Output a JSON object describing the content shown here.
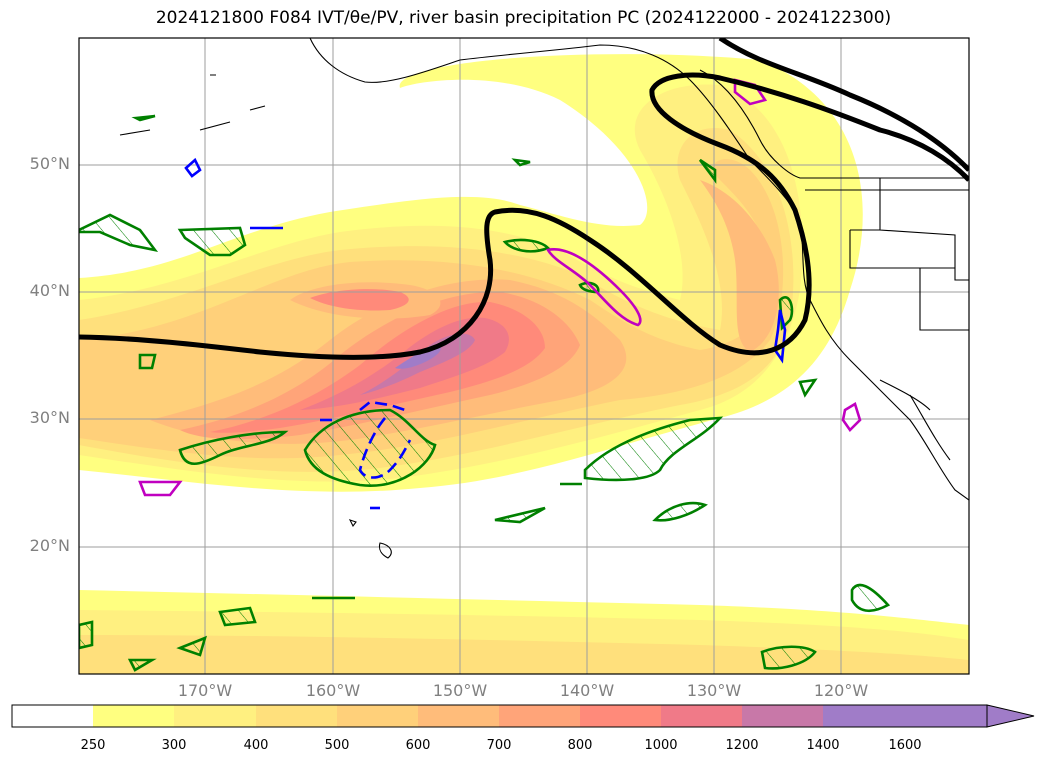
{
  "title": "2024121800 F084 IVT/θe/PV, river basin precipitation PC (2024122000 - 2024122300)",
  "map": {
    "lat_labels": [
      "50°N",
      "40°N",
      "30°N",
      "20°N"
    ],
    "lon_labels": [
      "170°W",
      "160°W",
      "150°W",
      "140°W",
      "130°W",
      "120°W"
    ]
  },
  "colorbar": {
    "ticks": [
      "250",
      "300",
      "400",
      "500",
      "600",
      "700",
      "800",
      "1000",
      "1200",
      "1400",
      "1600"
    ],
    "colors": [
      "#ffffff",
      "#ffff80",
      "#fff080",
      "#ffe07c",
      "#ffd07a",
      "#ffbc7a",
      "#ffa479",
      "#ff8a7a",
      "#f07a88",
      "#c878a8",
      "#a07cc8"
    ]
  },
  "colors": {
    "pv_contour": "#008000",
    "theta_contour": "#0000ff",
    "pc_contour": "#c000c0",
    "ivt_line": "#000000"
  }
}
